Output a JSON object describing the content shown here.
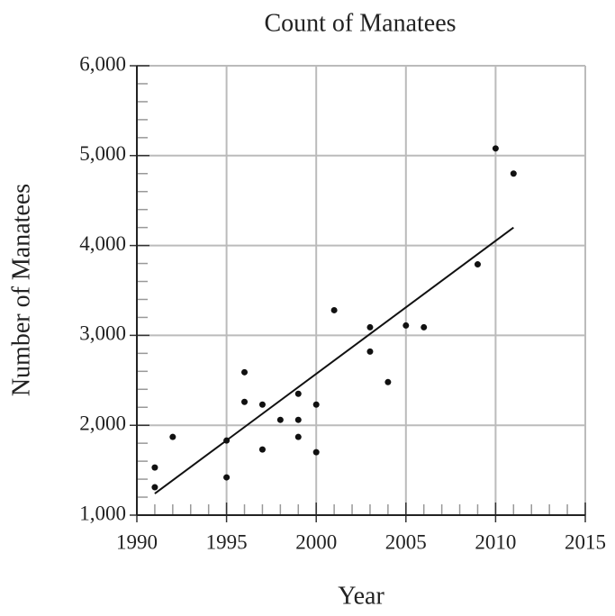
{
  "chart_data": {
    "type": "scatter",
    "title": "Count of Manatees",
    "x_label": "Year",
    "y_label": "Number of Manatees",
    "x": [
      1991,
      1991,
      1992,
      1995,
      1995,
      1996,
      1996,
      1997,
      1997,
      1998,
      1999,
      1999,
      1999,
      2000,
      2000,
      2001,
      2003,
      2003,
      2004,
      2005,
      2006,
      2009,
      2010,
      2011
    ],
    "values": [
      1530,
      1310,
      1870,
      1830,
      1420,
      2590,
      2260,
      2230,
      1730,
      2060,
      2350,
      2060,
      1870,
      2230,
      1700,
      3280,
      3090,
      2820,
      2480,
      3110,
      3090,
      3790,
      5080,
      4800
    ],
    "color": "#111111",
    "trend": {
      "x": [
        1991,
        2011
      ],
      "values": [
        1240,
        4200
      ],
      "color": "#111111"
    },
    "xlim": [
      1990,
      2015
    ],
    "xticks": [
      1990,
      1995,
      2000,
      2005,
      2010,
      2015
    ],
    "xminorticks": [
      1991,
      1992,
      1993,
      1994,
      1996,
      1997,
      1998,
      1999,
      2001,
      2002,
      2003,
      2004,
      2006,
      2007,
      2008,
      2009,
      2011,
      2012,
      2013,
      2014
    ],
    "ylim": [
      1000,
      6000
    ],
    "yticks": [
      {
        "value": 1000,
        "label": "1,000"
      },
      {
        "value": 2000,
        "label": "2,000"
      },
      {
        "value": 3000,
        "label": "3,000"
      },
      {
        "value": 4000,
        "label": "4,000"
      },
      {
        "value": 5000,
        "label": "5,000"
      },
      {
        "value": 6000,
        "label": "6,000"
      }
    ],
    "yminorticks": [
      1200,
      1400,
      1600,
      1800,
      2200,
      2400,
      2600,
      2800,
      3200,
      3400,
      3600,
      3800,
      4200,
      4400,
      4600,
      4800,
      5200,
      5400,
      5600,
      5800
    ],
    "grid": true
  }
}
